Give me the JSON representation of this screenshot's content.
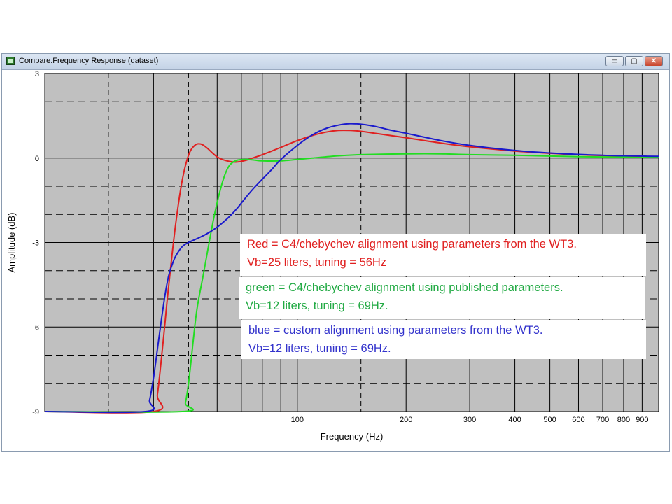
{
  "window": {
    "title": "Compare.Frequency Response (dataset)",
    "buttons": {
      "minimize": "▭",
      "restore": "▢",
      "close": "✕"
    }
  },
  "chart_data": {
    "type": "line",
    "xlabel": "Frequency (Hz)",
    "ylabel": "Amplitude (dB)",
    "xscale": "log",
    "xlim": [
      20,
      1000
    ],
    "ylim": [
      -9,
      3
    ],
    "grid": true,
    "x_ticks": [
      100,
      200,
      300,
      400,
      500,
      600,
      700,
      800,
      900
    ],
    "x_tick_labels": [
      "100",
      "200",
      "300",
      "400",
      "500",
      "600",
      "700",
      "800",
      "900"
    ],
    "y_ticks": [
      -9,
      -6,
      -3,
      0,
      3
    ],
    "y_tick_labels": [
      "-9",
      "-6",
      "-3",
      "0",
      "3"
    ],
    "series": [
      {
        "color": "#e02020",
        "x": [
          20,
          40,
          41,
          42,
          43,
          44,
          46,
          48,
          50,
          52,
          54,
          56,
          58,
          60,
          62,
          65,
          68,
          72,
          76,
          80,
          85,
          90,
          100,
          110,
          120,
          130,
          140,
          150,
          170,
          200,
          250,
          300,
          400,
          500,
          600,
          700,
          800,
          900,
          1000
        ],
        "y": [
          -9,
          -9,
          -8.4,
          -7.2,
          -5.9,
          -4.6,
          -2.4,
          -0.8,
          0.1,
          0.45,
          0.5,
          0.38,
          0.2,
          0.04,
          -0.05,
          -0.12,
          -0.14,
          -0.08,
          0.02,
          0.12,
          0.25,
          0.38,
          0.62,
          0.8,
          0.92,
          0.98,
          0.98,
          0.95,
          0.85,
          0.72,
          0.53,
          0.4,
          0.25,
          0.17,
          0.12,
          0.09,
          0.07,
          0.06,
          0.05
        ]
      },
      {
        "color": "#22dd22",
        "x": [
          20,
          48,
          49,
          50,
          51,
          52,
          53,
          55,
          57,
          59,
          61,
          63,
          65,
          68,
          72,
          76,
          80,
          90,
          100,
          110,
          130,
          150,
          200,
          250,
          300,
          400,
          500,
          600,
          700,
          800,
          900,
          1000
        ],
        "y": [
          -9,
          -9,
          -8.7,
          -8,
          -7,
          -6,
          -5.2,
          -4.1,
          -3,
          -2,
          -1.2,
          -0.6,
          -0.25,
          -0.08,
          -0.05,
          -0.07,
          -0.1,
          -0.1,
          -0.05,
          0,
          0.08,
          0.12,
          0.15,
          0.15,
          0.12,
          0.1,
          0.07,
          0.05,
          0.04,
          0.03,
          0.02,
          0.02
        ]
      },
      {
        "color": "#1a1acc",
        "x": [
          20,
          38,
          39,
          40,
          41,
          42,
          43,
          44,
          45,
          46,
          48,
          50,
          53,
          56,
          60,
          64,
          68,
          72,
          76,
          80,
          85,
          90,
          100,
          110,
          120,
          130,
          140,
          150,
          160,
          170,
          180,
          200,
          250,
          300,
          400,
          500,
          600,
          700,
          800,
          900,
          1000
        ],
        "y": [
          -9,
          -9,
          -8.6,
          -7.8,
          -6.8,
          -5.8,
          -4.9,
          -4.2,
          -3.8,
          -3.5,
          -3.15,
          -3,
          -2.85,
          -2.7,
          -2.45,
          -2.15,
          -1.8,
          -1.4,
          -1.05,
          -0.75,
          -0.4,
          -0.05,
          0.45,
          0.82,
          1.05,
          1.17,
          1.22,
          1.2,
          1.15,
          1.08,
          1.0,
          0.88,
          0.62,
          0.45,
          0.27,
          0.18,
          0.13,
          0.1,
          0.08,
          0.07,
          0.06
        ]
      }
    ]
  },
  "legend": [
    {
      "color": "#e02020",
      "lines": [
        "Red = C4/chebychev alignment using parameters from the WT3.",
        "Vb=25 liters, tuning = 56Hz"
      ]
    },
    {
      "color": "#22aa44",
      "lines": [
        "green = C4/chebychev alignment using published parameters.",
        "Vb=12 liters, tuning = 69Hz."
      ]
    },
    {
      "color": "#3333cc",
      "lines": [
        "blue = custom alignment using parameters from the WT3.",
        "Vb=12 liters, tuning = 69Hz."
      ]
    }
  ]
}
